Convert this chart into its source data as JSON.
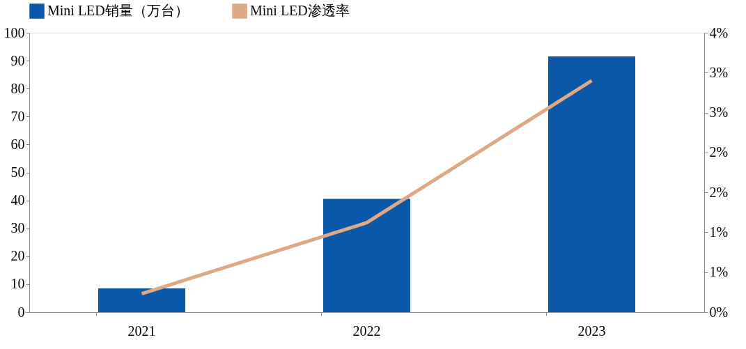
{
  "chart_data": {
    "type": "bar",
    "categories": [
      "2021",
      "2022",
      "2023"
    ],
    "series": [
      {
        "name": "Mini LED销量（万台）",
        "color": "#0b57a8",
        "values": [
          8.5,
          40.5,
          91.5
        ]
      },
      {
        "name": "Mini LED渗透率",
        "type": "line",
        "axis": "y2",
        "color": "#dfa985",
        "values": [
          0.23,
          1.12,
          2.9
        ]
      }
    ],
    "ylim": [
      0,
      100
    ],
    "yticks": [
      0,
      10,
      20,
      30,
      40,
      50,
      60,
      70,
      80,
      90,
      100
    ],
    "y2lim": [
      0,
      3.5
    ],
    "y2ticks": [
      {
        "value": 0,
        "label": "0%"
      },
      {
        "value": 0.5,
        "label": "1%"
      },
      {
        "value": 1,
        "label": "1%"
      },
      {
        "value": 1.5,
        "label": "2%"
      },
      {
        "value": 2,
        "label": "2%"
      },
      {
        "value": 2.5,
        "label": "3%"
      },
      {
        "value": 3,
        "label": "3%"
      },
      {
        "value": 3.5,
        "label": "4%"
      }
    ],
    "legend": "top",
    "grid": false,
    "marker": "none"
  }
}
